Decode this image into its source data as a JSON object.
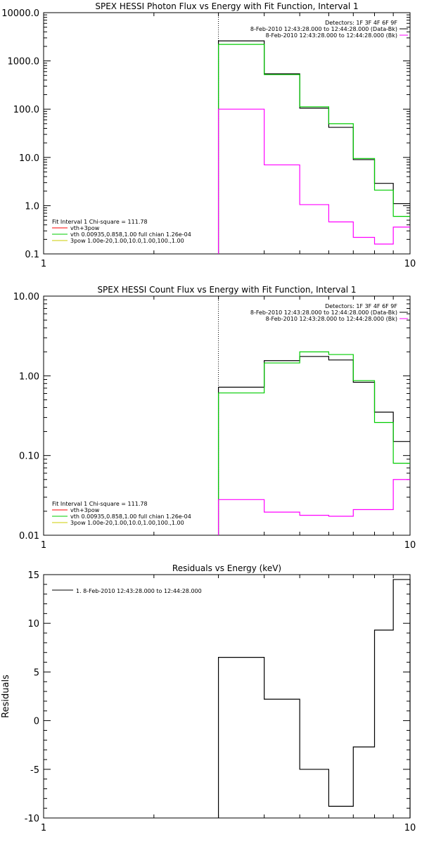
{
  "chart_data": [
    {
      "type": "line",
      "title": "SPEX HESSI Photon Flux vs Energy with Fit Function, Interval 1",
      "xlabel": "",
      "ylabel": "",
      "x_scale": "log",
      "y_scale": "log",
      "xlim": [
        1,
        10
      ],
      "ylim": [
        0.1,
        10000
      ],
      "x_ticks": [
        {
          "v": 1,
          "label": "1"
        },
        {
          "v": 10,
          "label": "10"
        }
      ],
      "y_ticks": [
        {
          "v": 0.1,
          "label": "0.1"
        },
        {
          "v": 1,
          "label": "1.0"
        },
        {
          "v": 10,
          "label": "10.0"
        },
        {
          "v": 100,
          "label": "100.0"
        },
        {
          "v": 1000,
          "label": "1000.0"
        },
        {
          "v": 10000,
          "label": "10000.0"
        }
      ],
      "vline_x": 3,
      "legend_top": [
        "Detectors: 1F 3F 4F 6F 9F",
        "8-Feb-2010 12:43:28.000 to 12:44:28.000 (Data-Bk)",
        "8-Feb-2010 12:43:28.000 to 12:44:28.000 (Bk)"
      ],
      "legend_bottom": [
        "Fit Interval 1   Chi-square = 111.78",
        "vth+3pow",
        "vth 0.00935,0.858,1.00  full chian 1.26e-04",
        "3pow 1.00e-20,1.00,10.0,1.00,100.,1.00"
      ],
      "edges": [
        3,
        4,
        5,
        6,
        7,
        8,
        9,
        10
      ],
      "series": [
        {
          "color": "#000000",
          "values": [
            2600,
            540,
            105,
            42,
            9,
            2.9,
            1.1
          ]
        },
        {
          "color": "#00cc00",
          "values": [
            2200,
            520,
            112,
            50,
            9.5,
            2.1,
            0.6
          ]
        },
        {
          "color": "#ff00ff",
          "values": [
            100,
            7,
            1.05,
            0.46,
            0.22,
            0.16,
            0.36
          ]
        }
      ]
    },
    {
      "type": "line",
      "title": "SPEX HESSI Count Flux vs Energy with Fit Function, Interval 1",
      "xlabel": "",
      "ylabel": "",
      "x_scale": "log",
      "y_scale": "log",
      "xlim": [
        1,
        10
      ],
      "ylim": [
        0.01,
        10
      ],
      "x_ticks": [
        {
          "v": 1,
          "label": "1"
        },
        {
          "v": 10,
          "label": "10"
        }
      ],
      "y_ticks": [
        {
          "v": 0.01,
          "label": "0.01"
        },
        {
          "v": 0.1,
          "label": "0.10"
        },
        {
          "v": 1,
          "label": "1.00"
        },
        {
          "v": 10,
          "label": "10.00"
        }
      ],
      "vline_x": 3,
      "legend_top": [
        "Detectors: 1F 3F 4F 6F 9F",
        "8-Feb-2010 12:43:28.000 to 12:44:28.000 (Data-Bk)",
        "8-Feb-2010 12:43:28.000 to 12:44:28.000 (Bk)"
      ],
      "legend_bottom": [
        "Fit Interval 1   Chi-square = 111.78",
        "vth+3pow",
        "vth 0.00935,0.858,1.00  full chian 1.26e-04",
        "3pow 1.00e-20,1.00,10.0,1.00,100.,1.00"
      ],
      "edges": [
        3,
        4,
        5,
        6,
        7,
        8,
        9,
        10
      ],
      "series": [
        {
          "color": "#000000",
          "values": [
            0.72,
            1.55,
            1.75,
            1.58,
            0.83,
            0.35,
            0.15
          ]
        },
        {
          "color": "#00cc00",
          "values": [
            0.61,
            1.45,
            2.0,
            1.85,
            0.87,
            0.26,
            0.08
          ]
        },
        {
          "color": "#ff00ff",
          "values": [
            0.028,
            0.0195,
            0.0178,
            0.0173,
            0.021,
            0.021,
            0.05
          ]
        }
      ]
    },
    {
      "type": "line",
      "title": "Residuals vs Energy (keV)",
      "xlabel": "",
      "ylabel": "Residuals",
      "x_scale": "log",
      "y_scale": "linear",
      "xlim": [
        1,
        10
      ],
      "ylim": [
        -10,
        15
      ],
      "x_ticks": [
        {
          "v": 1,
          "label": "1"
        },
        {
          "v": 10,
          "label": "10"
        }
      ],
      "y_ticks": [
        {
          "v": -10,
          "label": "-10"
        },
        {
          "v": -5,
          "label": "-5"
        },
        {
          "v": 0,
          "label": "0"
        },
        {
          "v": 5,
          "label": "5"
        },
        {
          "v": 10,
          "label": "10"
        },
        {
          "v": 15,
          "label": "15"
        }
      ],
      "legend_top": [
        "1.  8-Feb-2010 12:43:28.000 to 12:44:28.000"
      ],
      "edges": [
        3,
        4,
        5,
        6,
        7,
        8,
        9,
        10
      ],
      "series": [
        {
          "color": "#000000",
          "values": [
            6.5,
            2.2,
            -5.0,
            -8.8,
            -2.7,
            9.3,
            14.5
          ]
        }
      ]
    }
  ]
}
